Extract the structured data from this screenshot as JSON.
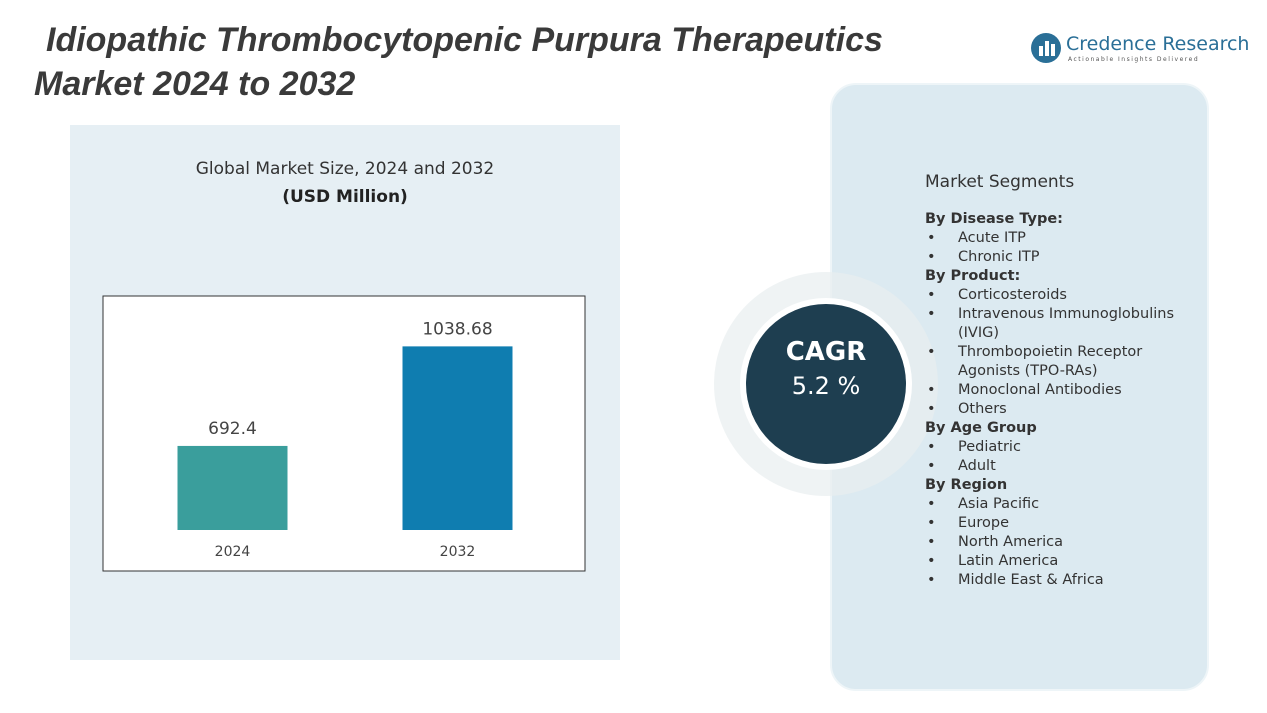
{
  "header": {
    "title_line1": "Idiopathic Thrombocytopenic Purpura Therapeutics",
    "title_line2": "Market 2024 to 2032",
    "brand": "Credence Research",
    "tagline": "Actionable Insights Delivered"
  },
  "chart_data": {
    "type": "bar",
    "title": "Global Market Size, 2024 and 2032",
    "subtitle": "(USD Million)",
    "categories": [
      "2024",
      "2032"
    ],
    "values": [
      692.4,
      1038.68
    ],
    "colors": [
      "#3a9e9c",
      "#0f7db0"
    ],
    "ylim": [
      400,
      1200
    ]
  },
  "cagr": {
    "label": "CAGR",
    "value": "5.2  %"
  },
  "segments": {
    "title": "Market Segments",
    "groups": [
      {
        "title": "By  Disease Type:",
        "items": [
          "Acute ITP",
          "Chronic ITP"
        ]
      },
      {
        "title": "By Product:",
        "items": [
          "Corticosteroids",
          "Intravenous Immunoglobulins (IVIG)",
          "Thrombopoietin Receptor Agonists (TPO-RAs)",
          "Monoclonal Antibodies",
          "Others"
        ]
      },
      {
        "title": "By Age Group",
        "items": [
          "Pediatric",
          "Adult"
        ]
      },
      {
        "title": "By Region",
        "items": [
          "Asia Pacific",
          "Europe",
          "North America",
          "Latin America",
          "Middle East & Africa"
        ]
      }
    ]
  }
}
